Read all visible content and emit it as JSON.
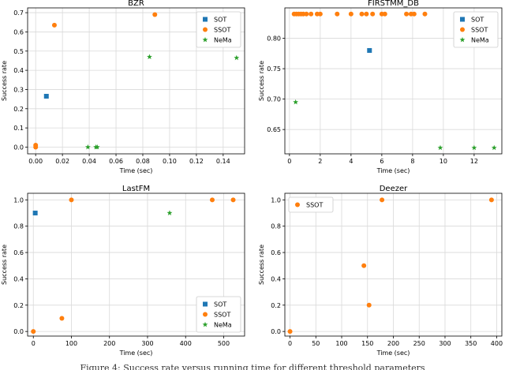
{
  "caption": "Figure 4: Success rate versus running time for different threshold parameters",
  "colors": {
    "sot": "#1f77b4",
    "ssot": "#ff7f0e",
    "nema": "#2ca02c",
    "grid": "#d9d9d9",
    "axis": "#000000"
  },
  "chart_data": [
    {
      "type": "scatter",
      "title": "BZR",
      "xlabel": "Time (sec)",
      "ylabel": "Success rate",
      "xlim": [
        -0.006,
        0.156
      ],
      "ylim": [
        -0.035,
        0.725
      ],
      "xticks": [
        0.0,
        0.02,
        0.04,
        0.06,
        0.08,
        0.1,
        0.12,
        0.14
      ],
      "xtick_labels": [
        "0.00",
        "0.02",
        "0.04",
        "0.06",
        "0.08",
        "0.10",
        "0.12",
        "0.14"
      ],
      "yticks": [
        0.0,
        0.1,
        0.2,
        0.3,
        0.4,
        0.5,
        0.6,
        0.7
      ],
      "ytick_labels": [
        "0.0",
        "0.1",
        "0.2",
        "0.3",
        "0.4",
        "0.5",
        "0.6",
        "0.7"
      ],
      "grid": true,
      "legend_position": "top-right",
      "series": [
        {
          "name": "SOT",
          "marker": "square",
          "x": [
            0.008
          ],
          "y": [
            0.265
          ]
        },
        {
          "name": "SSOT",
          "marker": "circle",
          "x": [
            0.0,
            0.0,
            0.014,
            0.089
          ],
          "y": [
            0.0,
            0.01,
            0.635,
            0.69
          ]
        },
        {
          "name": "NeMa",
          "marker": "star",
          "x": [
            0.039,
            0.045,
            0.046,
            0.085,
            0.15
          ],
          "y": [
            0.0,
            0.0,
            0.0,
            0.47,
            0.465
          ]
        }
      ]
    },
    {
      "type": "scatter",
      "title": "FIRSTMM_DB",
      "xlabel": "Time (sec)",
      "ylabel": "Success rate",
      "xlim": [
        -0.3,
        13.8
      ],
      "ylim": [
        0.61,
        0.85
      ],
      "xticks": [
        0,
        2,
        4,
        6,
        8,
        10,
        12
      ],
      "xtick_labels": [
        "0",
        "2",
        "4",
        "6",
        "8",
        "10",
        "12"
      ],
      "yticks": [
        0.65,
        0.7,
        0.75,
        0.8
      ],
      "ytick_labels": [
        "0.65",
        "0.70",
        "0.75",
        "0.80"
      ],
      "grid": true,
      "legend_position": "top-right",
      "series": [
        {
          "name": "SOT",
          "marker": "square",
          "x": [
            5.2
          ],
          "y": [
            0.78
          ]
        },
        {
          "name": "SSOT",
          "marker": "circle",
          "x": [
            0.3,
            0.45,
            0.6,
            0.75,
            0.9,
            1.1,
            1.4,
            1.8,
            2.0,
            3.1,
            4.0,
            4.7,
            5.0,
            5.4,
            6.0,
            6.2,
            7.6,
            7.9,
            8.1,
            8.8
          ],
          "y": [
            0.84,
            0.84,
            0.84,
            0.84,
            0.84,
            0.84,
            0.84,
            0.84,
            0.84,
            0.84,
            0.84,
            0.84,
            0.84,
            0.84,
            0.84,
            0.84,
            0.84,
            0.84,
            0.84,
            0.84
          ]
        },
        {
          "name": "NeMa",
          "marker": "star",
          "x": [
            0.4,
            9.8,
            12.0,
            13.3
          ],
          "y": [
            0.695,
            0.62,
            0.62,
            0.62
          ]
        }
      ]
    },
    {
      "type": "scatter",
      "title": "LastFM",
      "xlabel": "Time (sec)",
      "ylabel": "Success rate",
      "xlim": [
        -15,
        555
      ],
      "ylim": [
        -0.035,
        1.05
      ],
      "xticks": [
        0,
        100,
        200,
        300,
        400,
        500
      ],
      "xtick_labels": [
        "0",
        "100",
        "200",
        "300",
        "400",
        "500"
      ],
      "yticks": [
        0.0,
        0.2,
        0.4,
        0.6,
        0.8,
        1.0
      ],
      "ytick_labels": [
        "0.0",
        "0.2",
        "0.4",
        "0.6",
        "0.8",
        "1.0"
      ],
      "grid": true,
      "legend_position": "bottom-right",
      "series": [
        {
          "name": "SOT",
          "marker": "square",
          "x": [
            5
          ],
          "y": [
            0.9
          ]
        },
        {
          "name": "SSOT",
          "marker": "circle",
          "x": [
            0,
            75,
            100,
            470,
            525
          ],
          "y": [
            0.0,
            0.1,
            1.0,
            1.0,
            1.0
          ]
        },
        {
          "name": "NeMa",
          "marker": "star",
          "x": [
            358
          ],
          "y": [
            0.9
          ]
        }
      ]
    },
    {
      "type": "scatter",
      "title": "Deezer",
      "xlabel": "Time (sec)",
      "ylabel": "Success rate",
      "xlim": [
        -10,
        410
      ],
      "ylim": [
        -0.035,
        1.05
      ],
      "xticks": [
        0,
        50,
        100,
        150,
        200,
        250,
        300,
        350,
        400
      ],
      "xtick_labels": [
        "0",
        "50",
        "100",
        "150",
        "200",
        "250",
        "300",
        "350",
        "400"
      ],
      "yticks": [
        0.0,
        0.2,
        0.4,
        0.6,
        0.8,
        1.0
      ],
      "ytick_labels": [
        "0.0",
        "0.2",
        "0.4",
        "0.6",
        "0.8",
        "1.0"
      ],
      "grid": true,
      "legend_position": "top-left",
      "series": [
        {
          "name": "SSOT",
          "marker": "circle",
          "x": [
            0,
            143,
            153,
            178,
            390
          ],
          "y": [
            0.0,
            0.5,
            0.2,
            1.0,
            1.0
          ]
        }
      ]
    }
  ]
}
